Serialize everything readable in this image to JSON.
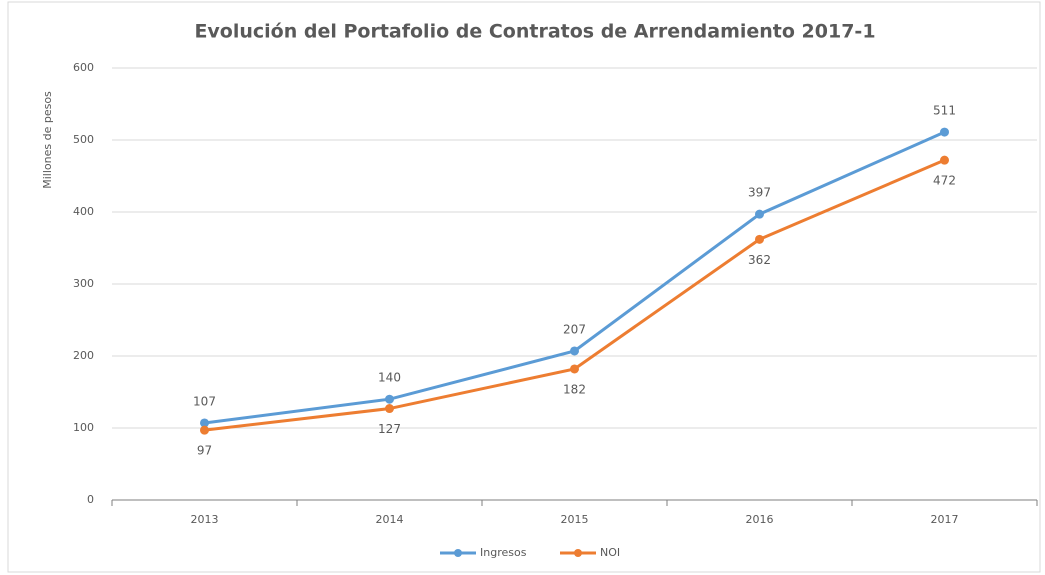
{
  "chart_data": {
    "type": "line",
    "title": "Evolución del Portafolio de Contratos de Arrendamiento 2017-1",
    "y_label": "Millones de pesos",
    "categories": [
      "2013",
      "2014",
      "2015",
      "2016",
      "2017"
    ],
    "series": [
      {
        "name": "Ingresos",
        "color": "#5b9bd5",
        "values": [
          107,
          140,
          207,
          397,
          511
        ]
      },
      {
        "name": "NOI",
        "color": "#ed7d31",
        "values": [
          97,
          127,
          182,
          362,
          472
        ]
      }
    ],
    "ylim": [
      0,
      600
    ],
    "yticks": [
      0,
      100,
      200,
      300,
      400,
      500,
      600
    ],
    "grid": true,
    "legend": "bottom"
  }
}
